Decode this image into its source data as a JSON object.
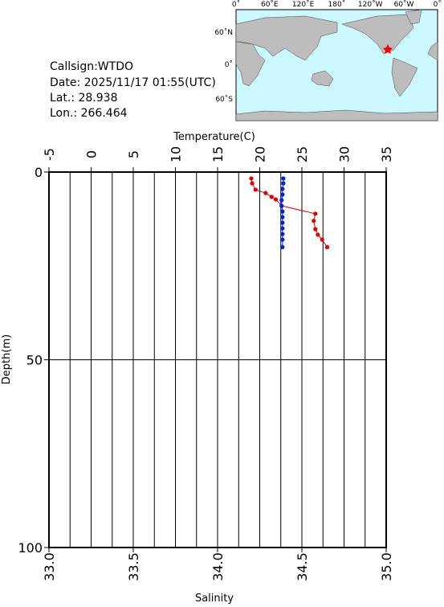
{
  "info": {
    "callsign": "Callsign:WTDO",
    "date": "Date:  2025/11/17 01:55(UTC)",
    "lat": "Lat.:   28.938",
    "lon": "Lon.:  266.464"
  },
  "map": {
    "lon_labels": [
      "0˚",
      "60˚E",
      "120˚E",
      "180˚",
      "120˚W",
      "60˚W",
      "0˚"
    ],
    "lat_labels": [
      "60˚N",
      "0˚",
      "60˚S"
    ]
  },
  "chart_data": {
    "type": "profile",
    "x_label": "Temperature(C)",
    "x2_label": "Salinity",
    "y_label": "Depth(m)",
    "xlim": [
      -5,
      35
    ],
    "xticks": [
      -5,
      0,
      5,
      10,
      15,
      20,
      25,
      30,
      35
    ],
    "x2lim": [
      33,
      35
    ],
    "x2ticks": [
      {
        "value": 33,
        "label": "33.0"
      },
      {
        "value": 33.5,
        "label": "33.5"
      },
      {
        "value": 34,
        "label": "34.0"
      },
      {
        "value": 34.5,
        "label": "34.5"
      },
      {
        "value": 35,
        "label": "35.0"
      }
    ],
    "ylim": [
      0,
      100
    ],
    "yticks": [
      0,
      50,
      100
    ],
    "y_reversed": true,
    "xgrid": [
      -2.5,
      0,
      2.5,
      5,
      7.5,
      10,
      12.5,
      15,
      17.5,
      20,
      22.5,
      25,
      27.5,
      30,
      32.5
    ],
    "ygrid": [
      50
    ],
    "series": [
      {
        "color": "#e00000",
        "axis": "x",
        "depth": [
          1.7,
          3,
          4.7,
          5.6,
          6.6,
          7.3,
          9,
          11.1,
          13,
          15.2,
          16.7,
          18,
          20
        ],
        "values": [
          19.0,
          19.1,
          19.5,
          20.7,
          21.4,
          21.9,
          22.6,
          26.6,
          26.4,
          26.6,
          26.9,
          27.4,
          28.0
        ]
      },
      {
        "color": "#0020e0",
        "axis": "x2",
        "depth": [
          1.7,
          3,
          4.5,
          6,
          7.5,
          9,
          10.5,
          12,
          13.5,
          15,
          16.5,
          18,
          20
        ],
        "values": [
          34.39,
          34.39,
          34.385,
          34.385,
          34.38,
          34.38,
          34.385,
          34.385,
          34.385,
          34.385,
          34.385,
          34.385,
          34.385
        ]
      }
    ]
  }
}
